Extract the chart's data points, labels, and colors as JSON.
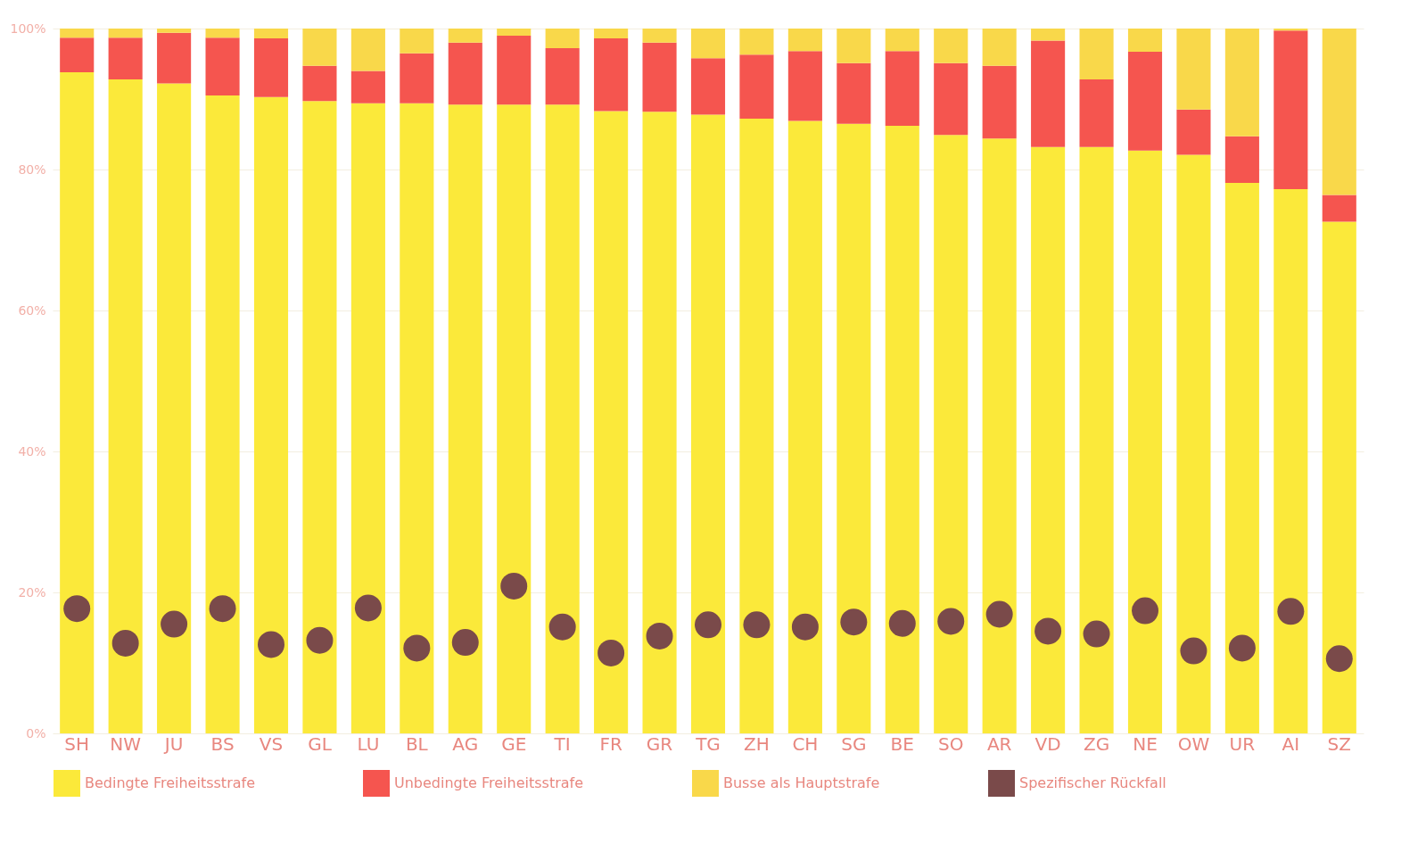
{
  "chart_data": {
    "type": "bar",
    "stacked": true,
    "categories": [
      "SH",
      "NW",
      "JU",
      "BS",
      "VS",
      "GL",
      "LU",
      "BL",
      "AG",
      "GE",
      "TI",
      "FR",
      "GR",
      "TG",
      "ZH",
      "CH",
      "SG",
      "BE",
      "SO",
      "AR",
      "VD",
      "ZG",
      "NE",
      "OW",
      "UR",
      "AI",
      "SZ"
    ],
    "series": [
      {
        "name": "Bedingte Freiheitsstrafe",
        "color": "#fbe93a",
        "values": [
          93.8,
          92.8,
          92.2,
          90.5,
          90.3,
          89.7,
          89.4,
          89.4,
          89.2,
          89.2,
          89.2,
          88.3,
          88.2,
          87.8,
          87.2,
          86.9,
          86.5,
          86.2,
          84.9,
          84.4,
          83.2,
          83.2,
          82.7,
          82.1,
          78.1,
          77.2,
          72.6
        ]
      },
      {
        "name": "Unbedingte Freiheitsstrafe",
        "color": "#f5554f",
        "values": [
          4.9,
          5.9,
          7.2,
          8.2,
          8.3,
          5.0,
          4.6,
          7.1,
          8.8,
          9.8,
          8.0,
          10.3,
          9.8,
          8.0,
          9.1,
          9.9,
          8.6,
          10.6,
          10.2,
          10.3,
          15.1,
          9.6,
          14.0,
          6.4,
          6.6,
          22.5,
          3.8
        ]
      },
      {
        "name": "Busse als Hauptstrafe",
        "color": "#f9d84a",
        "values": [
          1.3,
          1.3,
          0.6,
          1.3,
          1.4,
          5.3,
          6.0,
          3.5,
          2.0,
          1.0,
          2.8,
          1.4,
          2.0,
          4.2,
          3.7,
          3.2,
          4.9,
          3.2,
          4.9,
          5.3,
          1.7,
          7.2,
          3.3,
          11.5,
          15.3,
          0.3,
          23.6
        ]
      },
      {
        "name": "Spezifischer Rückfall",
        "type": "scatter",
        "color": "#7a4a4a",
        "x": [
          "SH",
          "NW",
          "JU",
          "BS",
          "VS",
          "GL",
          "LU",
          "BL",
          "AG",
          "GE",
          "TI",
          "FR",
          "GR",
          "TG",
          "ZH",
          "CH",
          "SG",
          "BE",
          "SO",
          "AR",
          "VD",
          "ZG",
          "NE",
          "OW",
          "UR",
          "AI",
          "SZ"
        ],
        "values": [
          17.7,
          12.8,
          15.5,
          17.7,
          12.6,
          13.2,
          17.8,
          12.1,
          12.9,
          20.9,
          15.1,
          11.4,
          13.8,
          15.4,
          15.4,
          15.1,
          15.8,
          15.6,
          15.9,
          16.9,
          14.5,
          14.1,
          17.4,
          11.7,
          12.1,
          17.3,
          10.6
        ]
      }
    ],
    "ylim": [
      0,
      100
    ],
    "yticks": [
      {
        "value": 0,
        "label": "0%"
      },
      {
        "value": 20,
        "label": "20%"
      },
      {
        "value": 40,
        "label": "40%"
      },
      {
        "value": 60,
        "label": "60%"
      },
      {
        "value": 80,
        "label": "80%"
      },
      {
        "value": 100,
        "label": "100%"
      }
    ],
    "grid": "y",
    "legend": "bottom",
    "marker": "circle"
  }
}
